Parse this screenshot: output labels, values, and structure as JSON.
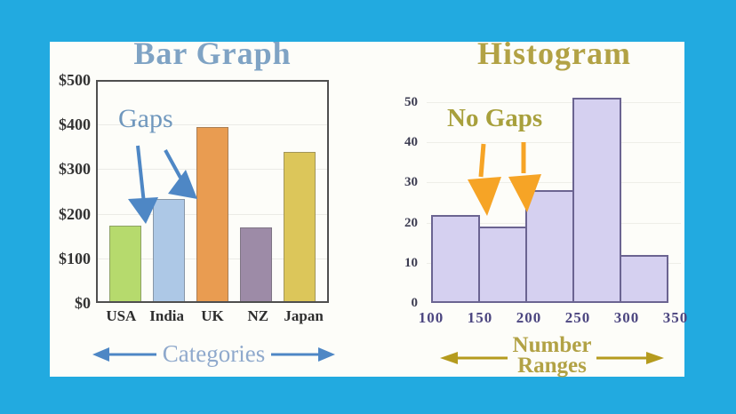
{
  "page": {
    "background_color": "#22aae0",
    "panel_color": "#fdfdf9"
  },
  "bar_chart": {
    "title": "Bar Graph",
    "title_color": "#7fa3c4",
    "annotation": {
      "text": "Gaps",
      "color": "#6f97bd"
    },
    "arrow_color": "#4e87c5",
    "caption": {
      "text": "Categories",
      "color": "#8fa9cc",
      "arrow_color": "#4e87c5"
    },
    "axis_text_color": "#333333",
    "box_border_color": "#4f4f4f"
  },
  "histogram": {
    "title": "Histogram",
    "title_color": "#b2a245",
    "annotation": {
      "text": "No Gaps",
      "color": "#a8a03c"
    },
    "arrow_color": "#f6a426",
    "caption": {
      "line1": "Number",
      "line2": "Ranges",
      "color": "#b2a245",
      "arrow_color": "#b59b1e"
    },
    "bar_fill": "#d5d0f0",
    "bar_border": "#6b6491",
    "tick_color": "#4c4680"
  },
  "chart_data": [
    {
      "type": "bar",
      "title": "Bar Graph",
      "categories": [
        "USA",
        "India",
        "UK",
        "NZ",
        "Japan"
      ],
      "values": [
        170,
        230,
        390,
        165,
        335
      ],
      "bar_colors": [
        "#b6da6d",
        "#adc8e6",
        "#e99c51",
        "#9d8ba7",
        "#dcc65a"
      ],
      "yticks": [
        "$0",
        "$100",
        "$200",
        "$300",
        "$400",
        "$500"
      ],
      "ytick_values": [
        0,
        100,
        200,
        300,
        400,
        500
      ],
      "ylim": [
        0,
        500
      ],
      "xlabel": "Categories",
      "annotation": "Gaps",
      "grid": true,
      "legend": "none"
    },
    {
      "type": "histogram",
      "title": "Histogram",
      "bin_edges": [
        100,
        150,
        200,
        250,
        300,
        350
      ],
      "values": [
        22,
        19,
        28,
        51,
        12
      ],
      "yticks": [
        0,
        10,
        20,
        30,
        40,
        50
      ],
      "ylim": [
        0,
        52
      ],
      "xlabel": "Number Ranges",
      "annotation": "No Gaps",
      "grid": true,
      "legend": "none"
    }
  ]
}
